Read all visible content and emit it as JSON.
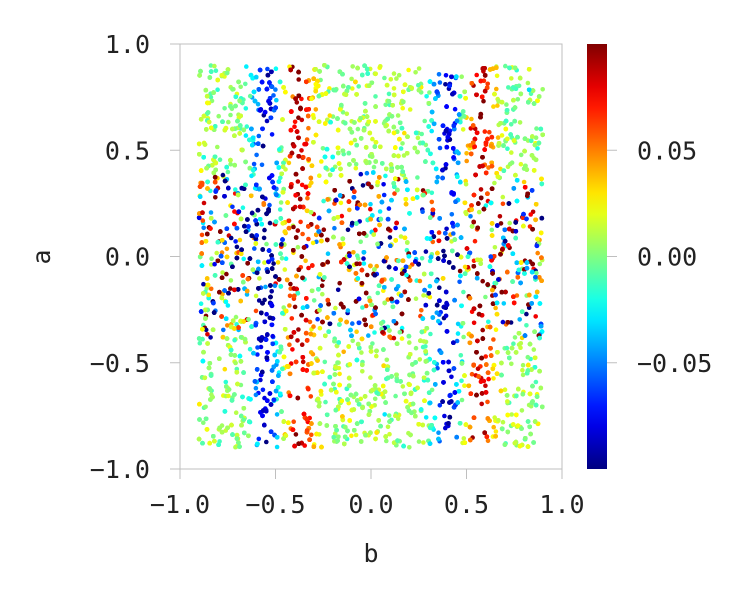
{
  "chart_data": {
    "type": "scatter",
    "title": "",
    "xlabel": "b",
    "ylabel": "a",
    "xlim": [
      -1.0,
      1.0
    ],
    "ylim": [
      -1.0,
      1.0
    ],
    "x_ticks": [
      "-1.0",
      "-0.5",
      "0.0",
      "0.5",
      "1.0"
    ],
    "y_ticks": [
      "-1.0",
      "-0.5",
      "0.0",
      "0.5",
      "1.0"
    ],
    "data_extent": {
      "b": [
        -0.9,
        0.9
      ],
      "a": [
        -0.9,
        0.9
      ]
    },
    "grid": false,
    "colormap": "jet",
    "colorbar": {
      "range": [
        -0.1,
        0.1
      ],
      "ticks": [
        "0.05",
        "0.00",
        "-0.05"
      ],
      "tick_values": [
        0.05,
        0.0,
        -0.05
      ]
    },
    "structure": {
      "low_value_bands_b": [
        -0.55,
        0.4
      ],
      "high_value_bands_b": [
        -0.38,
        0.57
      ],
      "band_halfwidth": 0.06,
      "lobes_center_b": [
        -0.9,
        0.0,
        0.9
      ],
      "lobe_halfheight_a": 0.4,
      "lobe_halfwidth_b": 0.45
    }
  }
}
